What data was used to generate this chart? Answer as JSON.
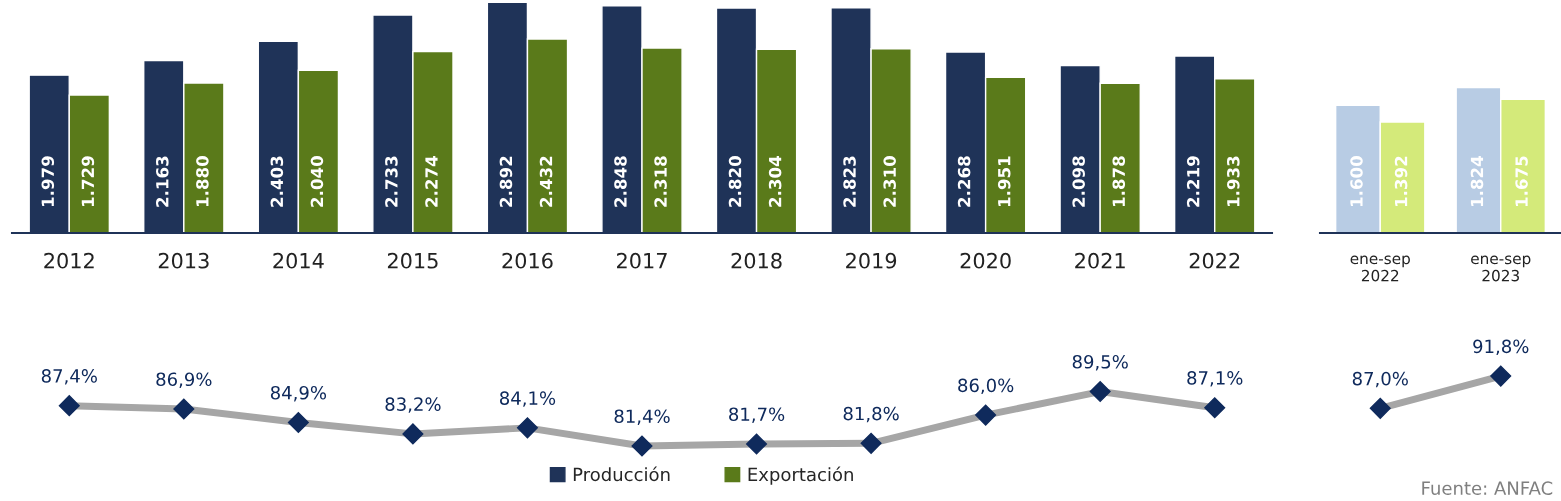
{
  "chart_data": [
    {
      "type": "bar",
      "categories": [
        "2012",
        "2013",
        "2014",
        "2015",
        "2016",
        "2017",
        "2018",
        "2019",
        "2020",
        "2021",
        "2022"
      ],
      "legend": "bottom",
      "series": [
        {
          "name": "Producción",
          "color": "#1f3358",
          "values": [
            1979,
            2163,
            2403,
            2733,
            2892,
            2848,
            2820,
            2823,
            2268,
            2098,
            2219
          ],
          "value_labels": [
            "1.979",
            "2.163",
            "2.403",
            "2.733",
            "2.892",
            "2.848",
            "2.820",
            "2.823",
            "2.268",
            "2.098",
            "2.219"
          ]
        },
        {
          "name": "Exportación",
          "color": "#5a7a1a",
          "values": [
            1729,
            1880,
            2040,
            2274,
            2432,
            2318,
            2304,
            2310,
            1951,
            1878,
            1933
          ],
          "value_labels": [
            "1.729",
            "1.880",
            "2.040",
            "2.274",
            "2.432",
            "2.318",
            "2.304",
            "2.310",
            "1.951",
            "1.878",
            "1.933"
          ]
        }
      ]
    },
    {
      "type": "bar",
      "categories": [
        "ene-sep\n2022",
        "ene-sep\n2023"
      ],
      "series": [
        {
          "color": "#b8cce4",
          "values": [
            1600,
            1824
          ],
          "value_labels": [
            "1.600",
            "1.824"
          ]
        },
        {
          "color": "#d4ea7a",
          "values": [
            1392,
            1675
          ],
          "value_labels": [
            "1.392",
            "1.675"
          ]
        }
      ]
    },
    {
      "type": "line",
      "categories": [
        null,
        null,
        null,
        null,
        null,
        null,
        null,
        null,
        null,
        null,
        null
      ],
      "marker": "diamond",
      "series": [
        {
          "color": "#a6a6a6",
          "colors": [
            "#0f2a5c",
            "#0f2a5c",
            "#0f2a5c",
            "#0f2a5c",
            "#0f2a5c",
            "#0f2a5c",
            "#0f2a5c",
            "#0f2a5c",
            "#0f2a5c",
            "#0f2a5c",
            "#0f2a5c"
          ],
          "values": [
            87.4,
            86.9,
            84.9,
            83.2,
            84.1,
            81.4,
            81.7,
            81.8,
            86.0,
            89.5,
            87.1
          ],
          "value_labels": [
            "87,4%",
            "86,9%",
            "84,9%",
            "83,2%",
            "84,1%",
            "81,4%",
            "81,7%",
            "81,8%",
            "86,0%",
            "89,5%",
            "87,1%"
          ]
        }
      ]
    },
    {
      "type": "line",
      "categories": [
        null,
        null
      ],
      "marker": "diamond",
      "annotations": [
        "Fuente: ANFAC"
      ],
      "series": [
        {
          "color": "#a6a6a6",
          "colors": [
            "#0f2a5c",
            "#0f2a5c"
          ],
          "values": [
            87.0,
            91.8
          ],
          "value_labels": [
            "87,0%",
            "91,8%"
          ]
        }
      ]
    }
  ]
}
